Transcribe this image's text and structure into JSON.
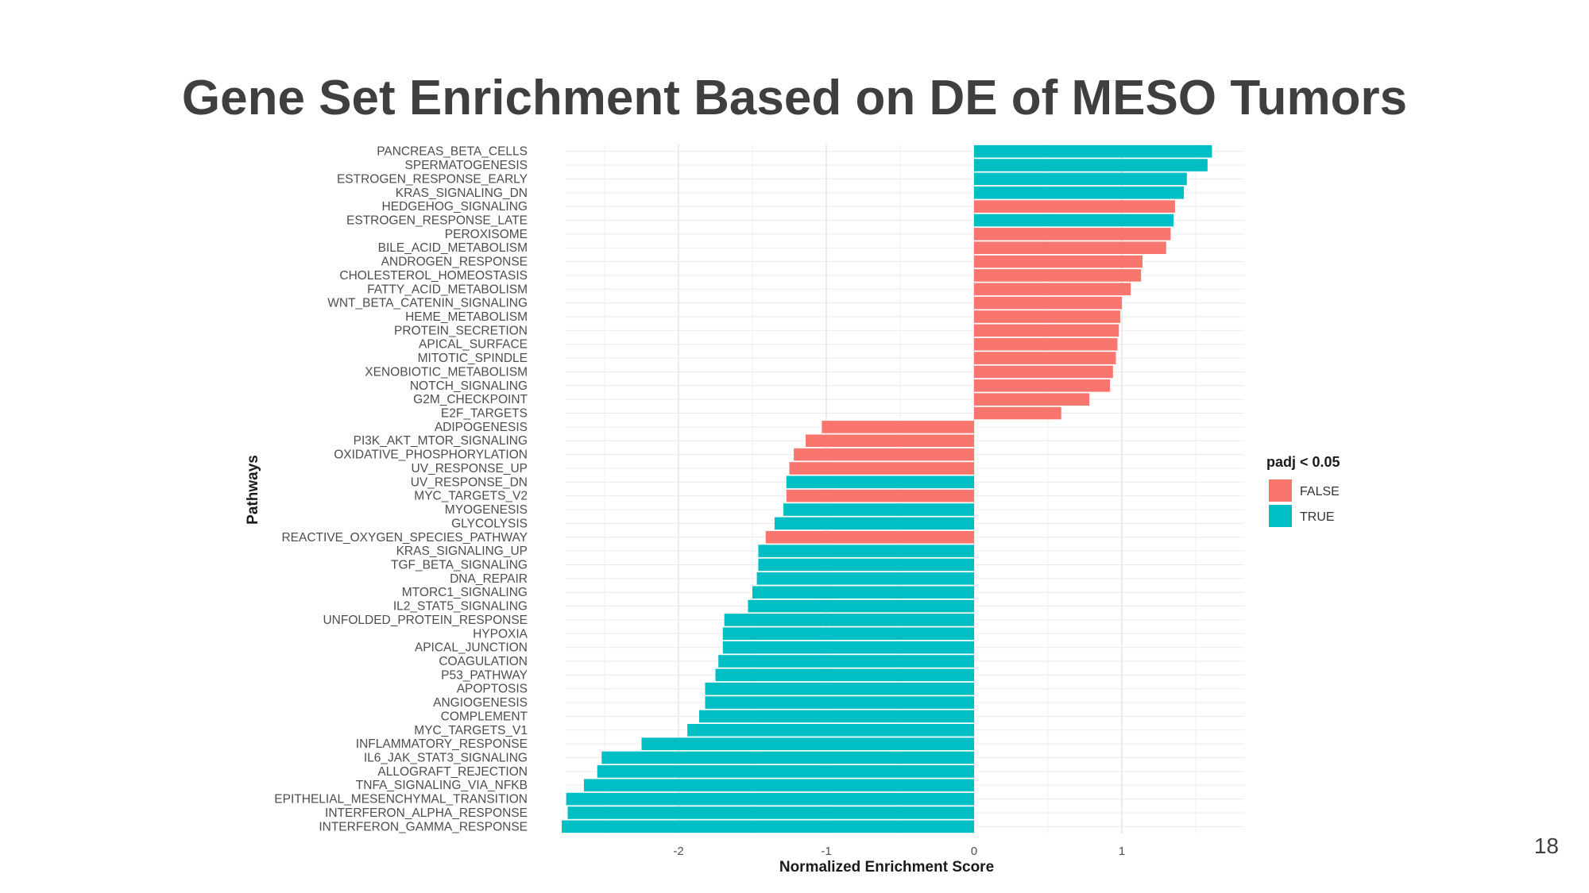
{
  "slide": {
    "title": "Gene Set Enrichment Based on DE of MESO Tumors",
    "page_number": "18"
  },
  "chart_data": {
    "type": "bar",
    "orientation": "horizontal",
    "xlabel": "Normalized Enrichment Score",
    "ylabel": "Pathways",
    "xlim": [
      -2.8,
      1.8
    ],
    "xticks": [
      -2,
      -1,
      0,
      1
    ],
    "grid": true,
    "legend": {
      "title": "padj < 0.05",
      "position": "right",
      "entries": [
        {
          "label": "FALSE",
          "color": "#F8766D"
        },
        {
          "label": "TRUE",
          "color": "#00BFC4"
        }
      ]
    },
    "colors": {
      "FALSE": "#F8766D",
      "TRUE": "#00BFC4"
    },
    "categories": [
      "PANCREAS_BETA_CELLS",
      "SPERMATOGENESIS",
      "ESTROGEN_RESPONSE_EARLY",
      "KRAS_SIGNALING_DN",
      "HEDGEHOG_SIGNALING",
      "ESTROGEN_RESPONSE_LATE",
      "PEROXISOME",
      "BILE_ACID_METABOLISM",
      "ANDROGEN_RESPONSE",
      "CHOLESTEROL_HOMEOSTASIS",
      "FATTY_ACID_METABOLISM",
      "WNT_BETA_CATENIN_SIGNALING",
      "HEME_METABOLISM",
      "PROTEIN_SECRETION",
      "APICAL_SURFACE",
      "MITOTIC_SPINDLE",
      "XENOBIOTIC_METABOLISM",
      "NOTCH_SIGNALING",
      "G2M_CHECKPOINT",
      "E2F_TARGETS",
      "ADIPOGENESIS",
      "PI3K_AKT_MTOR_SIGNALING",
      "OXIDATIVE_PHOSPHORYLATION",
      "UV_RESPONSE_UP",
      "UV_RESPONSE_DN",
      "MYC_TARGETS_V2",
      "MYOGENESIS",
      "GLYCOLYSIS",
      "REACTIVE_OXYGEN_SPECIES_PATHWAY",
      "KRAS_SIGNALING_UP",
      "TGF_BETA_SIGNALING",
      "DNA_REPAIR",
      "MTORC1_SIGNALING",
      "IL2_STAT5_SIGNALING",
      "UNFOLDED_PROTEIN_RESPONSE",
      "HYPOXIA",
      "APICAL_JUNCTION",
      "COAGULATION",
      "P53_PATHWAY",
      "APOPTOSIS",
      "ANGIOGENESIS",
      "COMPLEMENT",
      "MYC_TARGETS_V1",
      "INFLAMMATORY_RESPONSE",
      "IL6_JAK_STAT3_SIGNALING",
      "ALLOGRAFT_REJECTION",
      "TNFA_SIGNALING_VIA_NFKB",
      "EPITHELIAL_MESENCHYMAL_TRANSITION",
      "INTERFERON_ALPHA_RESPONSE",
      "INTERFERON_GAMMA_RESPONSE"
    ],
    "values": [
      1.61,
      1.58,
      1.44,
      1.42,
      1.36,
      1.35,
      1.33,
      1.3,
      1.14,
      1.13,
      1.06,
      1.0,
      0.99,
      0.98,
      0.97,
      0.96,
      0.94,
      0.92,
      0.78,
      0.59,
      -1.03,
      -1.14,
      -1.22,
      -1.25,
      -1.27,
      -1.27,
      -1.29,
      -1.35,
      -1.41,
      -1.46,
      -1.46,
      -1.47,
      -1.5,
      -1.53,
      -1.69,
      -1.7,
      -1.7,
      -1.73,
      -1.75,
      -1.82,
      -1.82,
      -1.86,
      -1.94,
      -2.25,
      -2.52,
      -2.55,
      -2.64,
      -2.76,
      -2.75,
      -2.79
    ],
    "padj_significant": [
      "TRUE",
      "TRUE",
      "TRUE",
      "TRUE",
      "FALSE",
      "TRUE",
      "FALSE",
      "FALSE",
      "FALSE",
      "FALSE",
      "FALSE",
      "FALSE",
      "FALSE",
      "FALSE",
      "FALSE",
      "FALSE",
      "FALSE",
      "FALSE",
      "FALSE",
      "FALSE",
      "FALSE",
      "FALSE",
      "FALSE",
      "FALSE",
      "TRUE",
      "FALSE",
      "TRUE",
      "TRUE",
      "FALSE",
      "TRUE",
      "TRUE",
      "TRUE",
      "TRUE",
      "TRUE",
      "TRUE",
      "TRUE",
      "TRUE",
      "TRUE",
      "TRUE",
      "TRUE",
      "TRUE",
      "TRUE",
      "TRUE",
      "TRUE",
      "TRUE",
      "TRUE",
      "TRUE",
      "TRUE",
      "TRUE",
      "TRUE"
    ]
  }
}
